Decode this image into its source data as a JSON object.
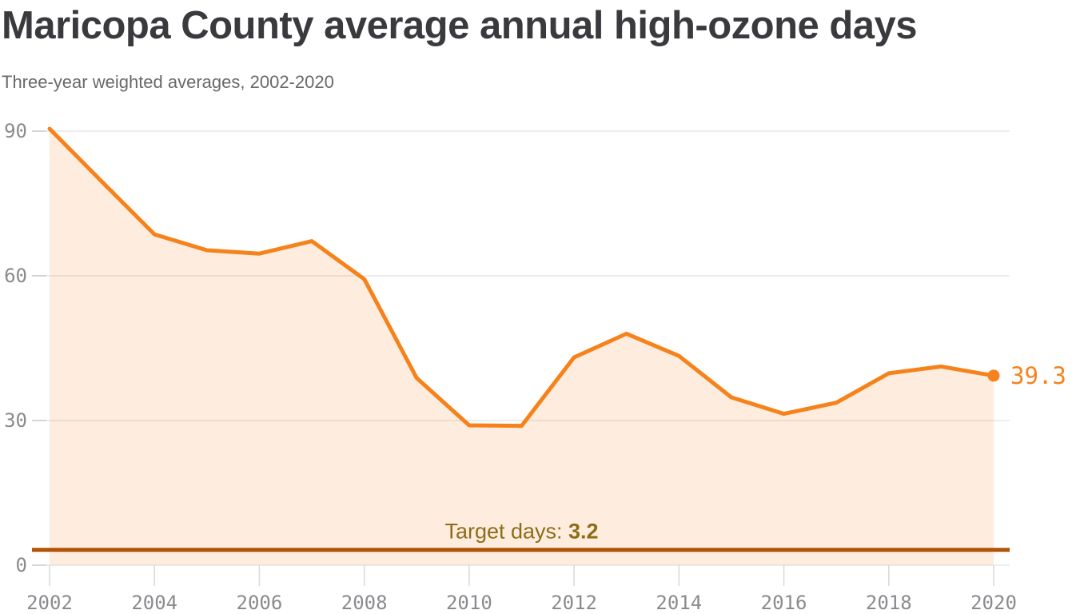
{
  "header": {
    "title": "Maricopa County average annual high-ozone days",
    "subtitle": "Three-year weighted averages, 2002-2020"
  },
  "chart_data": {
    "type": "area",
    "title": "Maricopa County average annual high-ozone days",
    "subtitle": "Three-year weighted averages, 2002-2020",
    "x": [
      2002,
      2003,
      2004,
      2005,
      2006,
      2007,
      2008,
      2009,
      2010,
      2011,
      2012,
      2013,
      2014,
      2015,
      2016,
      2017,
      2018,
      2019,
      2020
    ],
    "values": [
      90.5,
      79.5,
      68.6,
      65.3,
      64.6,
      67.2,
      59.3,
      38.8,
      29.0,
      28.9,
      43.1,
      48.0,
      43.4,
      34.8,
      31.4,
      33.7,
      39.8,
      41.2,
      39.3
    ],
    "end_value_label": "39.3",
    "target": {
      "value": 3.2,
      "label_prefix": "Target days: ",
      "label_value": "3.2"
    },
    "ylim": [
      0,
      90
    ],
    "yticks": [
      0,
      30,
      60,
      90
    ],
    "xtick_labels": [
      "2002",
      "2004",
      "2006",
      "2008",
      "2010",
      "2012",
      "2014",
      "2016",
      "2018",
      "2020"
    ],
    "grid": true,
    "legend": "none",
    "colors": {
      "line": "#f6821b",
      "area_fill": "rgba(246,130,27,0.14)",
      "target_line": "#b05407",
      "target_text": "#8d6c16",
      "axis_text": "#8b8b8f",
      "gridline": "#e7e7e7",
      "tick_stub": "#c9c9c9",
      "x_tick": "#d8d8d8",
      "title_text": "#3a3a3e",
      "subtitle_text": "#69696c"
    }
  }
}
